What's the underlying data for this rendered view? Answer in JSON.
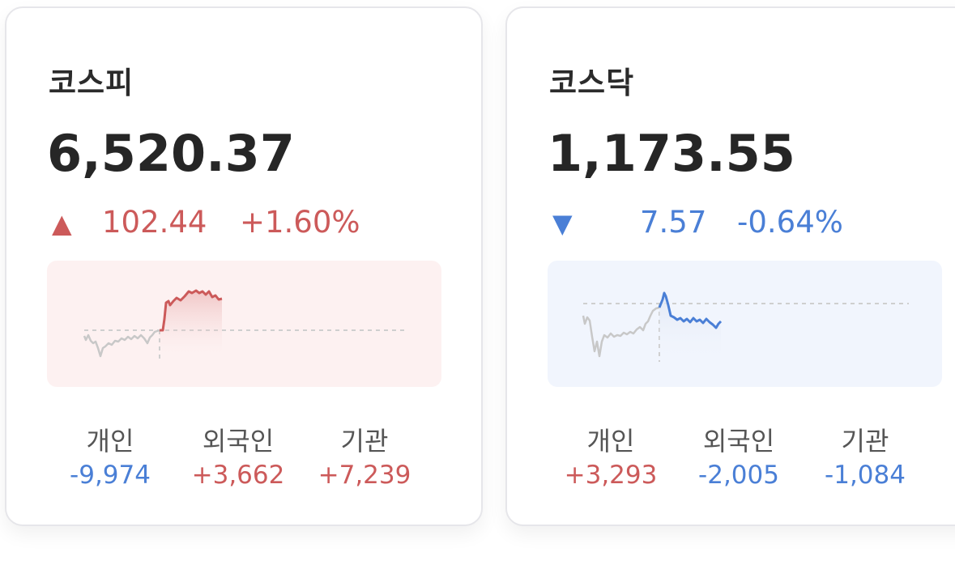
{
  "colors": {
    "up": "#cc5a5a",
    "down": "#4a7fd6",
    "up_bg": "#fdf1f1",
    "down_bg": "#f1f5fd",
    "flat_line": "#c8c8c8",
    "baseline": "#cfcfcf"
  },
  "cards": [
    {
      "name": "코스피",
      "value": "6,520.37",
      "direction": "up",
      "arrow_icon": "▲",
      "change": "102.44",
      "change_pct": "+1.60%",
      "flows": [
        {
          "label": "개인",
          "value": "-9,974",
          "direction": "down"
        },
        {
          "label": "외국인",
          "value": "+3,662",
          "direction": "up"
        },
        {
          "label": "기관",
          "value": "+7,239",
          "direction": "up"
        }
      ]
    },
    {
      "name": "코스닥",
      "value": "1,173.55",
      "direction": "down",
      "arrow_icon": "▼",
      "change": "7.57",
      "change_pct": "-0.64%",
      "flows": [
        {
          "label": "개인",
          "value": "+3,293",
          "direction": "up"
        },
        {
          "label": "외국인",
          "value": "-2,005",
          "direction": "down"
        },
        {
          "label": "기관",
          "value": "-1,084",
          "direction": "down"
        }
      ]
    }
  ]
}
